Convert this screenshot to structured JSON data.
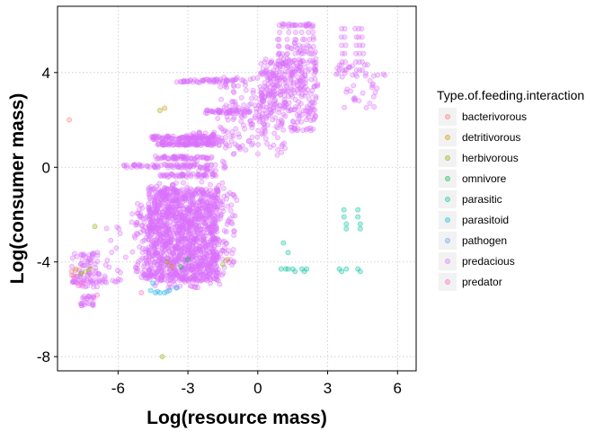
{
  "chart_data": {
    "type": "scatter",
    "xlabel": "Log(resource mass)",
    "ylabel": "Log(consumer mass)",
    "xlim": [
      -8.6,
      6.8
    ],
    "ylim": [
      -8.6,
      6.8
    ],
    "x_ticks": [
      -6,
      -3,
      0,
      3,
      6
    ],
    "y_ticks": [
      -8,
      -4,
      0,
      4
    ],
    "x_tick_labels": [
      "-6",
      "-3",
      "0",
      "3",
      "6"
    ],
    "y_tick_labels": [
      "-8",
      "-4",
      "0",
      "4"
    ],
    "grid": true,
    "panel_border": true,
    "point_alpha": 0.3,
    "legend": {
      "title": "Type.of.feeding.interaction",
      "position": "right"
    },
    "series": [
      {
        "name": "bacterivorous",
        "color": "#F8766D",
        "points": [
          [
            -8.1,
            2.0
          ],
          [
            -8.0,
            -4.4
          ],
          [
            -7.9,
            -4.6
          ]
        ]
      },
      {
        "name": "detritivorous",
        "color": "#D39200",
        "points": [
          [
            -7.8,
            -4.3
          ],
          [
            -4.0,
            2.5
          ],
          [
            -3.7,
            -4.2
          ],
          [
            -1.3,
            -3.9
          ]
        ]
      },
      {
        "name": "herbivorous",
        "color": "#93AA00",
        "points": [
          [
            -7.4,
            -4.4
          ],
          [
            -7.2,
            -4.3
          ],
          [
            -7.0,
            -2.5
          ],
          [
            -4.1,
            -8.0
          ],
          [
            -4.2,
            2.4
          ],
          [
            -3.9,
            -4.0
          ],
          [
            -1.5,
            -4.1
          ],
          [
            -7.6,
            -4.5
          ]
        ]
      },
      {
        "name": "omnivore",
        "color": "#00BA38",
        "points": [
          [
            -3.3,
            -4.2
          ],
          [
            -3.0,
            -3.9
          ]
        ]
      },
      {
        "name": "parasitic",
        "color": "#00C19F",
        "points": [
          [
            1.0,
            -4.3
          ],
          [
            1.2,
            -4.3
          ],
          [
            1.3,
            -4.3
          ],
          [
            1.5,
            -4.3
          ],
          [
            1.1,
            -3.2
          ],
          [
            1.3,
            -3.6
          ],
          [
            1.6,
            -4.4
          ],
          [
            1.9,
            -4.3
          ],
          [
            2.1,
            -4.3
          ],
          [
            2.0,
            -4.4
          ],
          [
            3.5,
            -4.3
          ],
          [
            3.6,
            -4.4
          ],
          [
            3.8,
            -4.3
          ],
          [
            4.3,
            -4.3
          ],
          [
            4.4,
            -4.4
          ],
          [
            3.7,
            -1.8
          ],
          [
            3.7,
            -2.1
          ],
          [
            3.8,
            -2.4
          ],
          [
            4.3,
            -1.8
          ],
          [
            4.3,
            -2.1
          ],
          [
            4.4,
            -2.4
          ],
          [
            3.8,
            -2.6
          ],
          [
            4.4,
            -2.6
          ]
        ]
      },
      {
        "name": "parasitoid",
        "color": "#00B9E3",
        "points": [
          [
            -4.6,
            -5.2
          ],
          [
            -4.4,
            -5.3
          ],
          [
            -4.2,
            -5.3
          ],
          [
            -4.0,
            -5.3
          ],
          [
            -3.8,
            -5.2
          ],
          [
            -3.5,
            -5.1
          ],
          [
            -4.5,
            -4.9
          ]
        ]
      },
      {
        "name": "pathogen",
        "color": "#619CFF",
        "points": [
          [
            -4.3,
            -5.25
          ],
          [
            -3.9,
            -5.25
          ]
        ]
      },
      {
        "name": "predacious",
        "color": "#DB72FB",
        "generated": true
      },
      {
        "name": "predator",
        "color": "#FF61C3",
        "points": [
          [
            -7.7,
            -5.0
          ],
          [
            -6.9,
            -5.4
          ],
          [
            -7.5,
            -4.9
          ],
          [
            -5.0,
            -5.3
          ]
        ]
      }
    ]
  }
}
